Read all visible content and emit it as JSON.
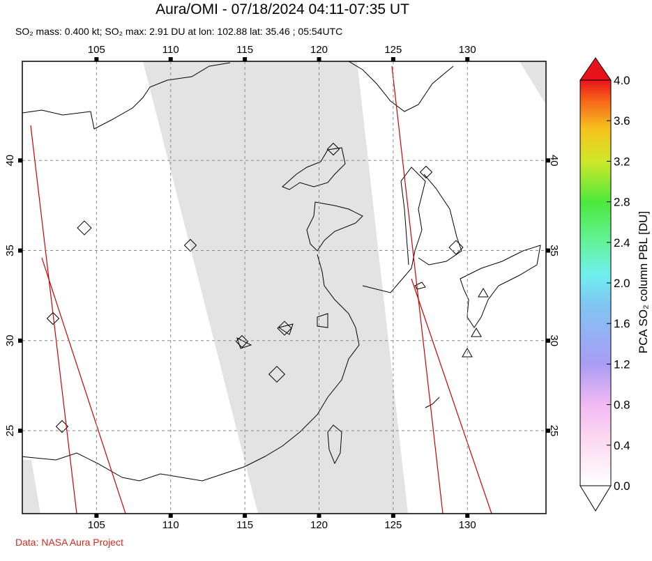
{
  "chart_data": {
    "type": "map",
    "title": "Aura/OMI - 07/18/2024 04:11-07:35 UT",
    "subtitle": "SO₂ mass: 0.400 kt; SO₂ max: 2.91 DU at lon: 102.88 lat: 35.46 ; 05:54UTC",
    "xlim": [
      100,
      135.3
    ],
    "ylim": [
      20.4,
      45.5
    ],
    "xticks": [
      105,
      110,
      115,
      120,
      125,
      130
    ],
    "yticks": [
      25,
      30,
      35,
      40
    ],
    "grid": true,
    "colorbar": {
      "label": "PCA SO₂ column PBL [DU]",
      "lim": [
        0,
        4
      ],
      "ticks": [
        {
          "value": 0,
          "label": "0.0"
        },
        0.4,
        0.8,
        1.2,
        1.6,
        {
          "value": 2,
          "label": "2.0"
        },
        2.4,
        2.8,
        3.2,
        3.6,
        {
          "value": 4,
          "label": "4.0"
        }
      ]
    },
    "source": "Data: NASA Aura Project"
  }
}
